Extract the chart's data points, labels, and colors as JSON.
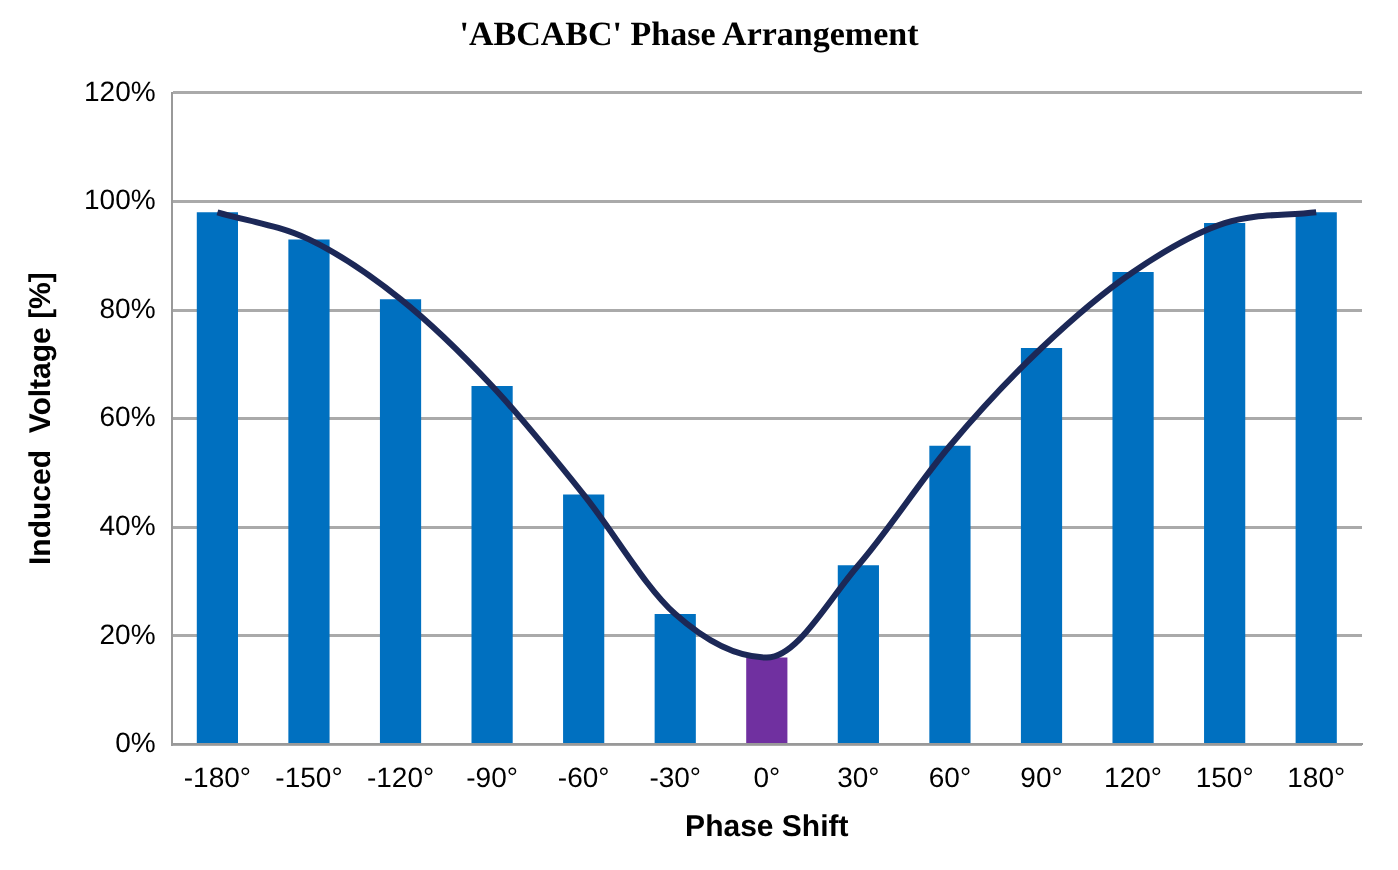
{
  "chart_data": {
    "type": "bar",
    "title": "'ABCABC' Phase Arrangement",
    "xlabel": "Phase Shift",
    "ylabel": "Induced  Voltage [%]",
    "categories": [
      "-180°",
      "-150°",
      "-120°",
      "-90°",
      "-60°",
      "-30°",
      "0°",
      "30°",
      "60°",
      "90°",
      "120°",
      "150°",
      "180°"
    ],
    "series": [
      {
        "colors": [
          "#0070c0",
          "#0070c0",
          "#0070c0",
          "#0070c0",
          "#0070c0",
          "#0070c0",
          "#7030a0",
          "#0070c0",
          "#0070c0",
          "#0070c0",
          "#0070c0",
          "#0070c0",
          "#0070c0"
        ],
        "values": [
          98,
          93,
          82,
          66,
          46,
          24,
          16,
          33,
          55,
          73,
          87,
          96,
          98
        ]
      },
      {
        "type": "line",
        "color": "#1c2857",
        "values": [
          98,
          93,
          82,
          66,
          46,
          24,
          16,
          33,
          55,
          73,
          87,
          96,
          98
        ]
      }
    ],
    "ylim": [
      0,
      120
    ],
    "yticks": [
      {
        "value": 0,
        "label": "0%"
      },
      {
        "value": 20,
        "label": "20%"
      },
      {
        "value": 40,
        "label": "40%"
      },
      {
        "value": 60,
        "label": "60%"
      },
      {
        "value": 80,
        "label": "80%"
      },
      {
        "value": 100,
        "label": "100%"
      },
      {
        "value": 120,
        "label": "120%"
      }
    ],
    "grid": "y",
    "marker": "none"
  }
}
